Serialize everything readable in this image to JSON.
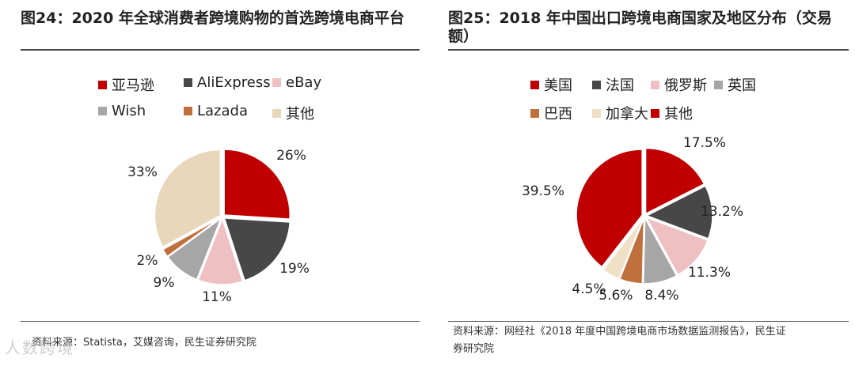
{
  "left": {
    "title": "图24：2020 年全球消费者跨境购物的首选跨境电商平台",
    "source": "资料来源：Statista，艾媒咨询，民生证券研究院"
  },
  "right": {
    "title": "图25：2018 年中国出口跨境电商国家及地区分布（交易额）",
    "source_line1": "资料来源：网经社《2018 年度中国跨境电商市场数据监测报告》，民生证",
    "source_line2": "券研究院"
  },
  "watermark": "人数跨境",
  "chart_data": [
    {
      "type": "pie",
      "title": "图24：2020 年全球消费者跨境购物的首选跨境电商平台",
      "categories": [
        "亚马逊",
        "AliExpress",
        "eBay",
        "Wish",
        "Lazada",
        "其他"
      ],
      "values": [
        26,
        19,
        11,
        9,
        2,
        33
      ],
      "labels": [
        "26%",
        "19%",
        "11%",
        "9%",
        "2%",
        "33%"
      ],
      "colors": [
        "#c00000",
        "#474747",
        "#eec0c1",
        "#a6a6a6",
        "#c0703c",
        "#e8d7bb"
      ],
      "legend_position": "top"
    },
    {
      "type": "pie",
      "title": "图25：2018 年中国出口跨境电商国家及地区分布（交易额）",
      "categories": [
        "美国",
        "法国",
        "俄罗斯",
        "英国",
        "巴西",
        "加拿大",
        "其他"
      ],
      "values": [
        17.5,
        13.2,
        11.3,
        8.4,
        5.6,
        4.5,
        39.5
      ],
      "labels": [
        "17.5%",
        "13.2%",
        "11.3%",
        "8.4%",
        "5.6%",
        "4.5%",
        "39.5%"
      ],
      "colors": [
        "#c00000",
        "#474747",
        "#eec0c1",
        "#a6a6a6",
        "#c0703c",
        "#efe0c6",
        "#c00000"
      ],
      "legend_position": "top"
    }
  ]
}
